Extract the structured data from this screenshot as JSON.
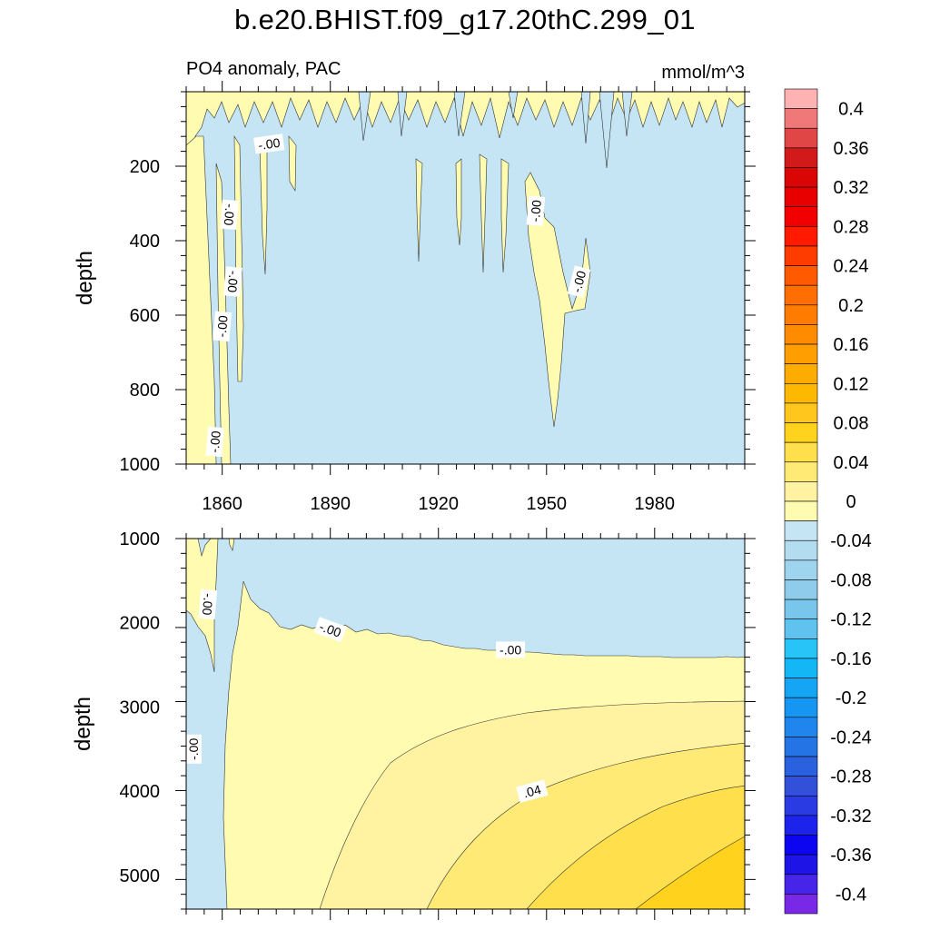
{
  "main_title": "b.e20.BHIST.f09_g17.20thC.299_01",
  "chart_data": {
    "type": "contour",
    "variable_label": "PO4 anomaly, PAC",
    "units_label": "mmol/m^3",
    "x_axis": {
      "range": [
        1850,
        2005
      ],
      "tick_values": [
        1860,
        1890,
        1920,
        1950,
        1980
      ],
      "tick_labels": [
        "1860",
        "1890",
        "1920",
        "1950",
        "1980"
      ]
    },
    "panels": [
      {
        "name": "upper",
        "ylabel": "depth",
        "ylim": [
          0,
          1000
        ],
        "y_tick_values": [
          200,
          400,
          600,
          800,
          1000
        ],
        "y_tick_labels": [
          "200",
          "400",
          "600",
          "800",
          "1000"
        ],
        "background_level": "-0.04 to 0",
        "contour_labels": [
          {
            "text": "-.00",
            "year": 1873,
            "depth": 140,
            "rot": -8
          },
          {
            "text": "-.00",
            "year": 1862,
            "depth": 330,
            "rot": 95
          },
          {
            "text": "-.00",
            "year": 1863,
            "depth": 510,
            "rot": 95
          },
          {
            "text": "-.00",
            "year": 1860,
            "depth": 630,
            "rot": -85
          },
          {
            "text": "-.00",
            "year": 1858,
            "depth": 940,
            "rot": -85
          },
          {
            "text": "-.00",
            "year": 1947,
            "depth": 320,
            "rot": -85
          },
          {
            "text": "-.00",
            "year": 1959,
            "depth": 510,
            "rot": -75
          }
        ]
      },
      {
        "name": "lower",
        "ylabel": "depth",
        "ylim": [
          1000,
          5400
        ],
        "y_tick_values": [
          1000,
          2000,
          3000,
          4000,
          5000
        ],
        "y_tick_labels": [
          "1000",
          "2000",
          "3000",
          "4000",
          "5000"
        ],
        "contour_labels": [
          {
            "text": "-.00",
            "year": 1856,
            "depth": 1780,
            "rot": 95
          },
          {
            "text": "-.00",
            "year": 1890,
            "depth": 2080,
            "rot": 20
          },
          {
            "text": "-.00",
            "year": 1940,
            "depth": 2320,
            "rot": 0
          },
          {
            "text": "-.00",
            "year": 1852,
            "depth": 3500,
            "rot": -90
          },
          {
            "text": ".04",
            "year": 1946,
            "depth": 4000,
            "rot": -15
          }
        ]
      }
    ],
    "colorbar": {
      "range": [
        -0.42,
        0.42
      ],
      "step": 0.02,
      "label_values": [
        0.4,
        0.36,
        0.32,
        0.28,
        0.24,
        0.2,
        0.16,
        0.12,
        0.08,
        0.04,
        0,
        -0.04,
        -0.08,
        -0.12,
        -0.16,
        -0.2,
        -0.24,
        -0.28,
        -0.32,
        -0.36,
        -0.4
      ],
      "label_texts": [
        "0.4",
        "0.36",
        "0.32",
        "0.28",
        "0.24",
        "0.2",
        "0.16",
        "0.12",
        "0.08",
        "0.04",
        "0",
        "-0.04",
        "-0.08",
        "-0.12",
        "-0.16",
        "-0.2",
        "-0.24",
        "-0.28",
        "-0.32",
        "-0.36",
        "-0.4"
      ],
      "colors_top_to_bottom": [
        "#FFB2B2",
        "#F07878",
        "#E04646",
        "#D21A1A",
        "#DA0606",
        "#E80000",
        "#F20000",
        "#FF1A00",
        "#FF3C00",
        "#FF5A00",
        "#FF6E00",
        "#FF7C00",
        "#FF8C00",
        "#FF9E00",
        "#FFAC00",
        "#FFB800",
        "#FFC61E",
        "#FFD21E",
        "#FFE04C",
        "#FFEA75",
        "#FFF2A0",
        "#FFFBB0",
        "#C5E5F5",
        "#B3DCF0",
        "#9FD4EE",
        "#8FCCEB",
        "#78C6EC",
        "#5FC2EF",
        "#28C3F7",
        "#14B7F5",
        "#14A6F5",
        "#1496F2",
        "#1F86EE",
        "#2574E6",
        "#2A61DF",
        "#3350DB",
        "#2B3BE3",
        "#1C23EB",
        "#0C06F0",
        "#1E14E6",
        "#4624E8",
        "#7828E6"
      ]
    }
  }
}
